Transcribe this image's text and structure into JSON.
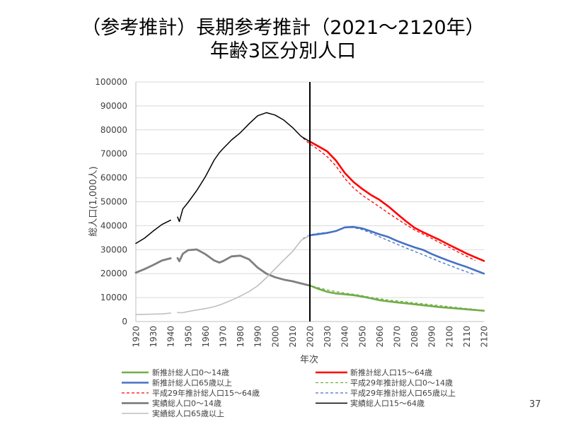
{
  "slide": {
    "page_number": "37"
  },
  "chart_data": {
    "type": "line",
    "title": "（参考推計）長期参考推計（2021～2120年）",
    "subtitle": "年齢3区分別人口",
    "xlabel": "年次",
    "ylabel": "総人口(1,000人)",
    "xlim": [
      1920,
      2120
    ],
    "ylim": [
      0,
      100000
    ],
    "x_ticks": [
      1920,
      1930,
      1940,
      1950,
      1960,
      1970,
      1980,
      1990,
      2000,
      2010,
      2020,
      2030,
      2040,
      2050,
      2060,
      2070,
      2080,
      2090,
      2100,
      2110,
      2120
    ],
    "y_ticks": [
      0,
      10000,
      20000,
      30000,
      40000,
      50000,
      60000,
      70000,
      80000,
      90000,
      100000
    ],
    "grid": "horizontal",
    "legend_placement": "bottom",
    "vline_x": 2020,
    "series": [
      {
        "name": "新推計総人口0～14歳",
        "color": "#70AD47",
        "line_style": "solid",
        "x": [
          2020,
          2025,
          2030,
          2035,
          2040,
          2045,
          2050,
          2055,
          2060,
          2065,
          2070,
          2075,
          2080,
          2085,
          2090,
          2095,
          2100,
          2105,
          2110,
          2115,
          2120
        ],
        "values": [
          15000,
          13600,
          12400,
          11700,
          11400,
          11000,
          10400,
          9700,
          8900,
          8400,
          8000,
          7600,
          7200,
          6800,
          6400,
          6000,
          5700,
          5400,
          5100,
          4800,
          4500
        ]
      },
      {
        "name": "新推計総人口15～64歳",
        "color": "#FF0000",
        "line_style": "solid",
        "x": [
          2020,
          2025,
          2030,
          2035,
          2040,
          2045,
          2050,
          2055,
          2060,
          2065,
          2070,
          2075,
          2080,
          2085,
          2090,
          2095,
          2100,
          2105,
          2110,
          2115,
          2120
        ],
        "values": [
          75100,
          73100,
          71000,
          67200,
          62100,
          58300,
          55400,
          52900,
          50800,
          48100,
          45000,
          42000,
          39200,
          37300,
          35600,
          33900,
          32000,
          30200,
          28400,
          26800,
          25300
        ]
      },
      {
        "name": "新推計総人口65歳以上",
        "color": "#4472C4",
        "line_style": "solid",
        "x": [
          2020,
          2025,
          2030,
          2035,
          2040,
          2045,
          2050,
          2055,
          2060,
          2065,
          2070,
          2075,
          2080,
          2085,
          2090,
          2095,
          2100,
          2105,
          2110,
          2115,
          2120
        ],
        "values": [
          36000,
          36500,
          37000,
          37800,
          39300,
          39500,
          38900,
          37700,
          36400,
          35300,
          33700,
          32300,
          31000,
          29900,
          28200,
          26700,
          25300,
          24000,
          22800,
          21400,
          20000
        ]
      },
      {
        "name": "平成29年推計総人口0～14歳",
        "color": "#70AD47",
        "line_style": "dashed",
        "x": [
          2016,
          2020,
          2025,
          2030,
          2035,
          2040,
          2045,
          2050,
          2055,
          2060,
          2065,
          2070,
          2075,
          2080,
          2085,
          2090,
          2095,
          2100,
          2105,
          2110,
          2115
        ],
        "values": [
          15800,
          15100,
          14100,
          13200,
          12500,
          11900,
          11400,
          10800,
          10100,
          9500,
          9000,
          8600,
          8200,
          7800,
          7400,
          7000,
          6600,
          6200,
          5800,
          5400,
          5100
        ]
      },
      {
        "name": "平成29年推計総人口15～64歳",
        "color": "#FF0000",
        "line_style": "dashed",
        "x": [
          2016,
          2020,
          2025,
          2030,
          2035,
          2040,
          2045,
          2050,
          2055,
          2060,
          2065,
          2070,
          2075,
          2080,
          2085,
          2090,
          2095,
          2100,
          2105,
          2110,
          2115
        ],
        "values": [
          76600,
          74100,
          71700,
          68800,
          64900,
          59800,
          55800,
          52800,
          50300,
          47900,
          45300,
          42900,
          40600,
          38300,
          36500,
          34700,
          32800,
          31000,
          29100,
          27300,
          25500
        ]
      },
      {
        "name": "平成29年推計総人口65歳以上",
        "color": "#4472C4",
        "line_style": "dashed",
        "x": [
          2016,
          2020,
          2025,
          2030,
          2035,
          2040,
          2045,
          2050,
          2055,
          2060,
          2065,
          2070,
          2075,
          2080,
          2085,
          2090,
          2095,
          2100,
          2105,
          2110,
          2115
        ],
        "values": [
          34600,
          36200,
          36800,
          37200,
          37800,
          39200,
          39200,
          38400,
          37000,
          35400,
          33800,
          32300,
          30800,
          29300,
          27900,
          26400,
          24900,
          23500,
          22100,
          20800,
          19500
        ]
      },
      {
        "name": "実績総人口0～14歳",
        "color": "#7F7F7F",
        "line_style": "solid",
        "x": [
          1920,
          1925,
          1930,
          1935,
          1940,
          1941,
          1944,
          1945,
          1947,
          1950,
          1955,
          1960,
          1965,
          1968,
          1970,
          1975,
          1980,
          1985,
          1990,
          1995,
          2000,
          2005,
          2010,
          2015,
          2020
        ],
        "values": [
          20400,
          21900,
          23600,
          25500,
          26400,
          null,
          26500,
          25200,
          28300,
          29800,
          30100,
          28100,
          25500,
          24600,
          25200,
          27200,
          27500,
          26000,
          22500,
          20000,
          18500,
          17500,
          16800,
          15900,
          15000
        ]
      },
      {
        "name": "実績総人口15～64歳",
        "color": "#000000",
        "line_style": "solid",
        "x": [
          1920,
          1925,
          1930,
          1935,
          1940,
          1941,
          1944,
          1945,
          1947,
          1950,
          1955,
          1960,
          1965,
          1968,
          1970,
          1975,
          1980,
          1985,
          1990,
          1995,
          2000,
          2005,
          2010,
          2015,
          2020
        ],
        "values": [
          32600,
          34800,
          37800,
          40500,
          42300,
          null,
          43600,
          41700,
          47000,
          49700,
          54700,
          60500,
          67400,
          70500,
          72100,
          75800,
          78800,
          82500,
          85900,
          87200,
          86200,
          84100,
          81000,
          77300,
          75100
        ]
      },
      {
        "name": "実績総人口65歳以上",
        "color": "#BFBFBF",
        "line_style": "solid",
        "x": [
          1920,
          1925,
          1930,
          1935,
          1940,
          1941,
          1944,
          1945,
          1947,
          1950,
          1955,
          1960,
          1965,
          1968,
          1970,
          1975,
          1980,
          1985,
          1990,
          1995,
          2000,
          2005,
          2010,
          2015,
          2020
        ],
        "values": [
          2900,
          3000,
          3100,
          3200,
          3500,
          null,
          3800,
          3700,
          3700,
          4200,
          4800,
          5400,
          6200,
          6900,
          7400,
          8900,
          10600,
          12500,
          14900,
          18300,
          22000,
          25700,
          29200,
          33900,
          36000
        ]
      }
    ]
  }
}
